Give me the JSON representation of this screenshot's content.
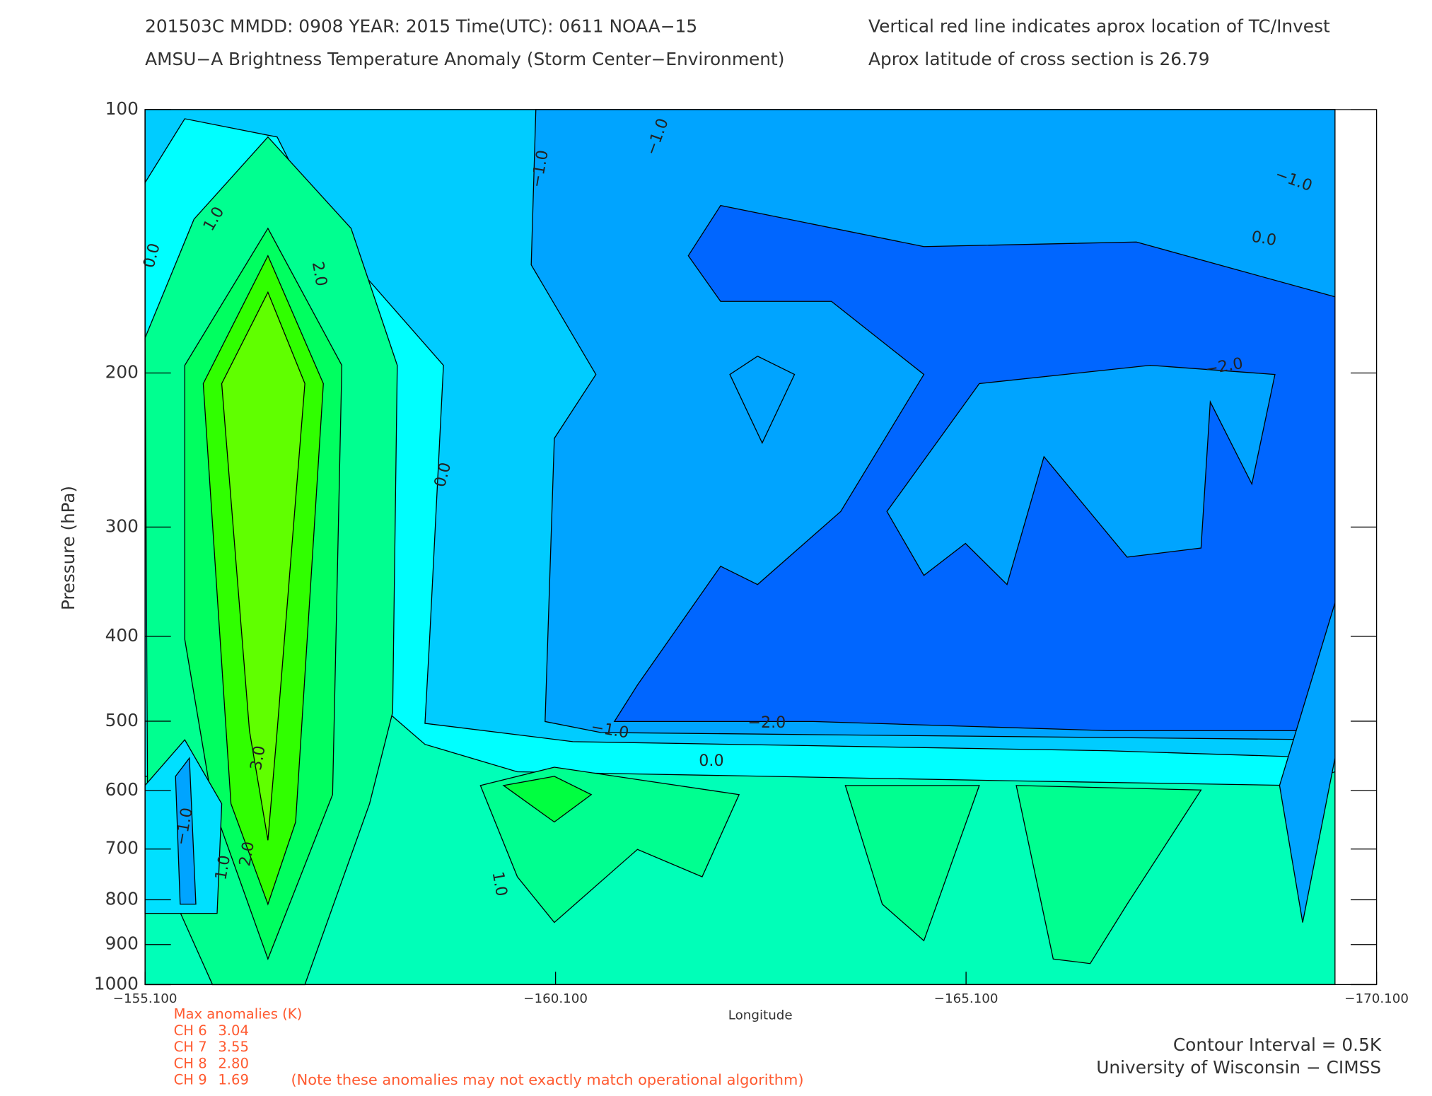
{
  "chart_data": {
    "type": "contour",
    "header": [
      "201503C  MMDD: 0908 YEAR: 2015 Time(UTC): 0611 NOAA−15",
      "AMSU−A Brightness Temperature Anomaly (Storm Center−Environment)"
    ],
    "notes": [
      "Vertical red line indicates aprox location of TC/Invest",
      "Aprox latitude of cross section is 26.79"
    ],
    "x_label": "Longitude",
    "y_label": "Pressure (hPa)",
    "xlim": [
      -155.1,
      -170.1
    ],
    "xticks": [
      {
        "value": -155.1,
        "label": "−155.100"
      },
      {
        "value": -160.1,
        "label": "−160.100"
      },
      {
        "value": -165.1,
        "label": "−165.100"
      },
      {
        "value": -170.1,
        "label": "−170.100"
      }
    ],
    "ylim": [
      1000,
      100
    ],
    "y_log": true,
    "yticks": [
      100,
      200,
      300,
      400,
      500,
      600,
      700,
      800,
      900,
      1000
    ],
    "contour_labels": [
      "1.0",
      "0.0",
      "2.0",
      "−1.0",
      "−1.0",
      "0.0",
      "−1.0",
      "0.0",
      "−2.0",
      "−1.0",
      "−2.0",
      "0.0",
      "3.0",
      "2.0",
      "1.0",
      "−1.0",
      "1.0"
    ],
    "max_anomalies": {
      "title": "Max anomalies (K)",
      "rows": [
        [
          "CH 6",
          "3.04"
        ],
        [
          "CH 7",
          "3.55"
        ],
        [
          "CH 8",
          "2.80"
        ],
        [
          "CH 9",
          "1.69"
        ]
      ],
      "note": "(Note these anomalies may not exactly match operational algorithm)"
    },
    "contour_interval": "Contour Interval = 0.5K",
    "credit": "University of Wisconsin − CIMSS"
  }
}
